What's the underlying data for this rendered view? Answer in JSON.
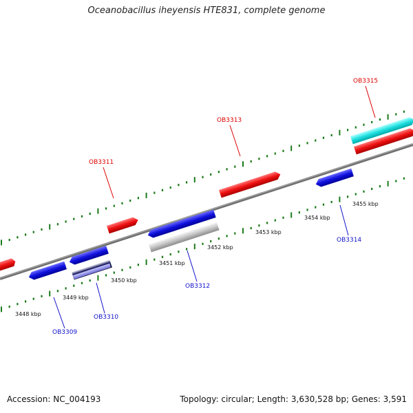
{
  "title": "Oceanobacillus iheyensis HTE831, complete genome",
  "footer": {
    "accession": "Accession: NC_004193",
    "summary": "Topology: circular; Length: 3,630,528 bp; Genes: 3,591"
  },
  "colors": {
    "forward": "#ee1111",
    "reverse": "#1111dd",
    "rna": "#22e0e0",
    "pseudo": "#bbbbbb",
    "selected_forward": "#ff3030",
    "selected_reverse": "#111166",
    "backbone": "#888888",
    "ticks": "#1a7a1a"
  },
  "scale": {
    "ticks": [
      {
        "label": "3448 kbp"
      },
      {
        "label": "3449 kbp"
      },
      {
        "label": "3450 kbp"
      },
      {
        "label": "3451 kbp"
      },
      {
        "label": "3452 kbp"
      },
      {
        "label": "3453 kbp"
      },
      {
        "label": "3454 kbp"
      },
      {
        "label": "3455 kbp"
      }
    ]
  },
  "gene_labels": [
    {
      "name": "OB3309",
      "strand": "reverse"
    },
    {
      "name": "OB3310",
      "strand": "reverse"
    },
    {
      "name": "OB3311",
      "strand": "forward"
    },
    {
      "name": "OB3312",
      "strand": "reverse"
    },
    {
      "name": "OB3313",
      "strand": "forward"
    },
    {
      "name": "OB3314",
      "strand": "reverse"
    },
    {
      "name": "OB3315",
      "strand": "forward"
    }
  ]
}
